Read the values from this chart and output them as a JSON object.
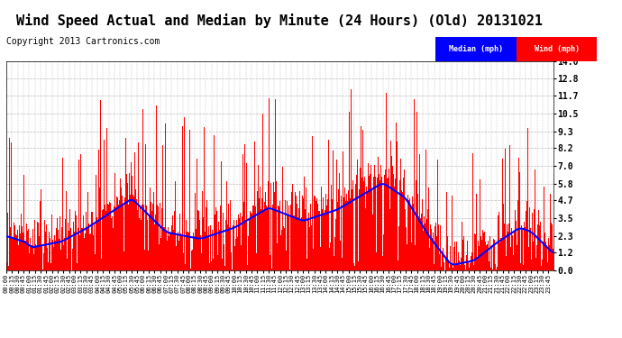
{
  "title": "Wind Speed Actual and Median by Minute (24 Hours) (Old) 20131021",
  "copyright": "Copyright 2013 Cartronics.com",
  "yticks": [
    0.0,
    1.2,
    2.3,
    3.5,
    4.7,
    5.8,
    7.0,
    8.2,
    9.3,
    10.5,
    11.7,
    12.8,
    14.0
  ],
  "ylim": [
    0.0,
    14.0
  ],
  "bar_color": "#FF0000",
  "median_color": "#0000FF",
  "bg_color": "#FFFFFF",
  "grid_color": "#BBBBBB",
  "legend_median_bg": "#0000FF",
  "legend_wind_bg": "#FF0000",
  "legend_text_color": "#FFFFFF",
  "title_fontsize": 11,
  "copyright_fontsize": 7,
  "n_minutes": 1440
}
